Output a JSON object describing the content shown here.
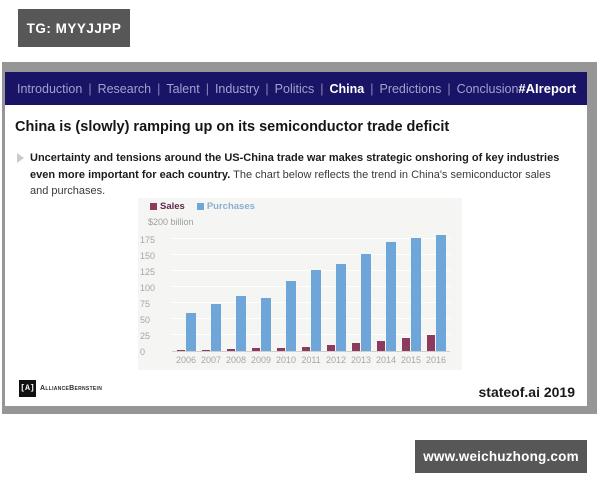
{
  "badges": {
    "top_left": "TG: MYYJJPP",
    "bottom_right": "www.weichuzhong.com"
  },
  "nav": {
    "separator": "|",
    "items": [
      {
        "label": "Introduction",
        "active": false
      },
      {
        "label": "Research",
        "active": false
      },
      {
        "label": "Talent",
        "active": false
      },
      {
        "label": "Industry",
        "active": false
      },
      {
        "label": "Politics",
        "active": false
      },
      {
        "label": "China",
        "active": true
      },
      {
        "label": "Predictions",
        "active": false
      },
      {
        "label": "Conclusion",
        "active": false
      }
    ],
    "hashtag": "#AIreport"
  },
  "slide": {
    "title": "China is (slowly) ramping up on its semiconductor trade deficit",
    "bullet": {
      "bold_text": "Uncertainty and tensions around the US-China trade war makes strategic onshoring of key industries even more important for each country.",
      "regular_text": " The chart below reflects the trend in China's semiconductor sales and purchases."
    },
    "footer_left_logo": "AllianceBernstein",
    "footer_logo_glyph": "[A]",
    "footer_right": "stateof.ai 2019"
  },
  "chart_data": {
    "type": "bar",
    "title": "",
    "unit_label": "$200 billion",
    "categories": [
      "2006",
      "2007",
      "2008",
      "2009",
      "2010",
      "2011",
      "2012",
      "2013",
      "2014",
      "2015",
      "2016"
    ],
    "series": [
      {
        "name": "Sales",
        "color": "#8d3a5f",
        "label_color": "#60284a",
        "values": [
          1,
          2,
          3,
          4,
          5,
          7,
          9,
          12,
          16,
          20,
          25
        ]
      },
      {
        "name": "Purchases",
        "color": "#6fa6d9",
        "label_color": "#8aafd0",
        "values": [
          59,
          74,
          86,
          83,
          110,
          126,
          136,
          151,
          170,
          177,
          182
        ]
      }
    ],
    "xlabel": "",
    "ylabel": "",
    "ylim": [
      0,
      200
    ],
    "yticks": [
      0,
      25,
      50,
      75,
      100,
      125,
      150,
      175
    ],
    "grid": true,
    "legend_position": "top-left"
  },
  "colors": {
    "nav_background": "#191465",
    "nav_inactive_text": "#a2a2d0",
    "nav_active_text": "#ffffff",
    "slide_frame": "#969696",
    "badge_background": "#575757",
    "chart_background": "#f5f5f3"
  }
}
